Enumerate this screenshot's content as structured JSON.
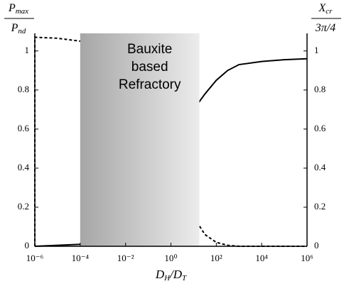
{
  "chart_data": {
    "type": "line",
    "x_scale": "log",
    "xlim": [
      1e-06,
      1000000
    ],
    "xticks": [
      {
        "value": 1e-06,
        "label": "10⁻⁶"
      },
      {
        "value": 0.0001,
        "label": "10⁻⁴"
      },
      {
        "value": 0.01,
        "label": "10⁻²"
      },
      {
        "value": 1,
        "label": "10⁰"
      },
      {
        "value": 100,
        "label": "10²"
      },
      {
        "value": 10000,
        "label": "10⁴"
      },
      {
        "value": 1000000,
        "label": "10⁶"
      }
    ],
    "ylim": [
      0,
      1.09
    ],
    "yticks": [
      0,
      0.2,
      0.4,
      0.6,
      0.8,
      1
    ],
    "y2lim": [
      0,
      1.09
    ],
    "y2ticks": [
      0,
      0.2,
      0.4,
      0.6,
      0.8,
      1
    ],
    "y_label": {
      "numerator": [
        {
          "text": "P"
        },
        {
          "text": "max",
          "sub": true
        }
      ],
      "denominator": [
        {
          "text": "P"
        },
        {
          "text": "nd",
          "sub": true
        }
      ]
    },
    "y2_label": {
      "numerator": [
        {
          "text": "X"
        },
        {
          "text": "cr",
          "sub": true
        }
      ],
      "denominator": [
        {
          "text": "3π/4"
        }
      ]
    },
    "x_label": [
      {
        "text": "D"
      },
      {
        "text": "H",
        "sub": true
      },
      {
        "text": "/D"
      },
      {
        "text": "T",
        "sub": true
      }
    ],
    "highlight": {
      "x": [
        0.0001,
        18
      ],
      "lines": [
        "Bauxite",
        "based",
        "Refractory"
      ]
    },
    "series": [
      {
        "axis": "y",
        "dash": true,
        "color": "#000000",
        "x": [
          1e-06,
          1e-06,
          1e-05,
          0.0001,
          0.001,
          0.01,
          0.1,
          1,
          10,
          31.6,
          100,
          316,
          1000,
          10000,
          100000,
          1000000
        ],
        "values": [
          0,
          1.07,
          1.065,
          1.05,
          1.0,
          0.9,
          0.7,
          0.4,
          0.15,
          0.06,
          0.02,
          0.005,
          0,
          0,
          0,
          0
        ]
      },
      {
        "axis": "y2",
        "dash": false,
        "color": "#000000",
        "x": [
          1e-06,
          1e-05,
          0.0001,
          0.001,
          0.01,
          0.1,
          1,
          10,
          31.6,
          100,
          316,
          1000,
          10000,
          100000,
          1000000
        ],
        "values": [
          0,
          0.005,
          0.01,
          0.05,
          0.15,
          0.3,
          0.5,
          0.7,
          0.78,
          0.85,
          0.9,
          0.93,
          0.946,
          0.955,
          0.96
        ]
      }
    ]
  }
}
